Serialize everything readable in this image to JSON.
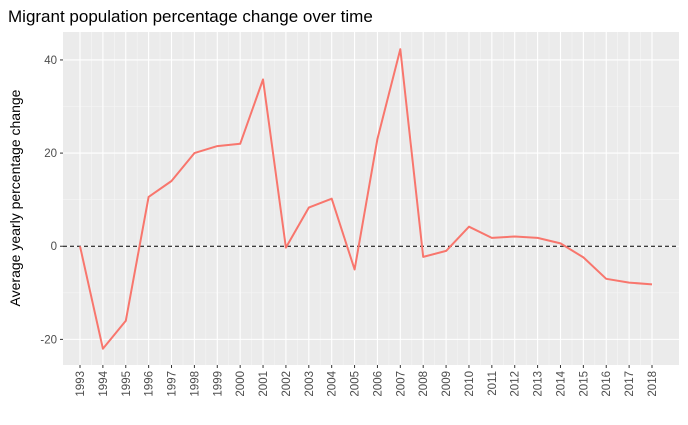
{
  "chart_data": {
    "type": "line",
    "title": "Migrant population percentage change over time",
    "xlabel": "",
    "ylabel": "Average yearly percentage change",
    "x": [
      "1993",
      "1994",
      "1995",
      "1996",
      "1997",
      "1998",
      "1999",
      "2000",
      "2001",
      "2002",
      "2003",
      "2004",
      "2005",
      "2006",
      "2007",
      "2008",
      "2009",
      "2010",
      "2011",
      "2012",
      "2013",
      "2014",
      "2015",
      "2016",
      "2017",
      "2018"
    ],
    "series": [
      {
        "values": [
          0,
          -22,
          -16,
          10.6,
          14,
          20,
          21.5,
          22,
          35.8,
          -0.3,
          8.3,
          10.2,
          -5,
          23,
          42.3,
          -2.3,
          -1,
          4.2,
          1.8,
          2.1,
          1.8,
          0.6,
          -2.4,
          -7,
          -7.8,
          -8.2
        ],
        "color": "#f8766d"
      }
    ],
    "ylim": [
      -25.5,
      46
    ],
    "yticks": [
      -20,
      0,
      20,
      40
    ],
    "reference_line": {
      "y": 0,
      "style": "dashed",
      "color": "#000000"
    },
    "grid": true,
    "background": "#ebebeb",
    "grid_major_color": "#ffffff"
  }
}
